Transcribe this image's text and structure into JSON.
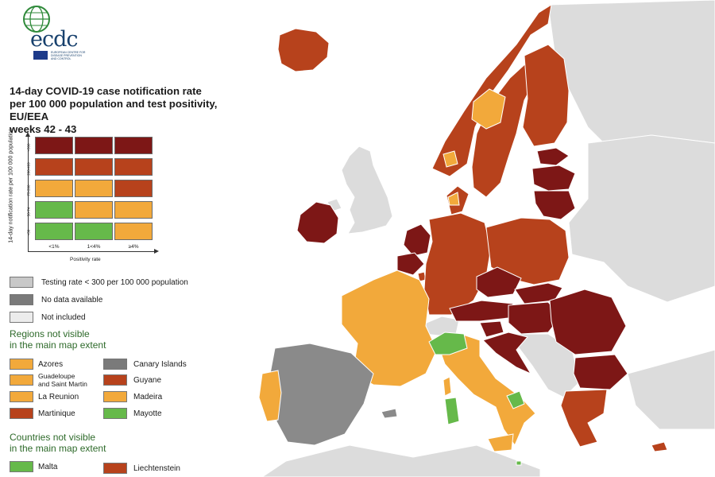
{
  "logo": {
    "wordmark": "ecdc",
    "subtext": [
      "EUROPEAN CENTRE FOR",
      "DISEASE PREVENTION",
      "AND CONTROL"
    ]
  },
  "title_lines": [
    "14-day COVID-19 case notification rate",
    "per 100 000 population and test positivity, EU/EEA",
    "weeks 42 - 43"
  ],
  "matrix": {
    "y_axis_label": "14-day notification rate per 100 000 population",
    "x_axis_label": "Positivity rate",
    "row_labels": [
      ">500",
      "200-499",
      "75-200",
      "50-74",
      "<50"
    ],
    "col_labels": [
      "<1%",
      "1<4%",
      "≥4%"
    ],
    "cells": [
      [
        "#7d1716",
        "#7d1716",
        "#7d1716"
      ],
      [
        "#b7421c",
        "#b7421c",
        "#b7421c"
      ],
      [
        "#f2a93b",
        "#f2a93b",
        "#b7421c"
      ],
      [
        "#66b94a",
        "#f2a93b",
        "#f2a93b"
      ],
      [
        "#66b94a",
        "#66b94a",
        "#f2a93b"
      ]
    ]
  },
  "legend": {
    "general": [
      {
        "label": "Testing rate < 300 per 100 000 population",
        "color": "#c8c8c8"
      },
      {
        "label": "No data available",
        "color": "#7a7a7a"
      },
      {
        "label": "Not included",
        "color": "#ececec"
      }
    ],
    "regions_title": [
      "Regions not visible",
      "in the main map extent"
    ],
    "regions_left": [
      {
        "label": "Azores",
        "color": "#f2a93b"
      },
      {
        "label": "Guadeloupe and Saint Martin",
        "label_lines": [
          "Guadeloupe",
          "and Saint Martin"
        ],
        "color": "#f2a93b"
      },
      {
        "label": "La Reunion",
        "color": "#f2a93b"
      },
      {
        "label": "Martinique",
        "color": "#b7421c"
      }
    ],
    "regions_right": [
      {
        "label": "Canary Islands",
        "color": "#7a7a7a"
      },
      {
        "label": "Guyane",
        "color": "#b7421c"
      },
      {
        "label": "Madeira",
        "color": "#f2a93b"
      },
      {
        "label": "Mayotte",
        "color": "#66b94a"
      }
    ],
    "countries_title": [
      "Countries not visible",
      "in the main map extent"
    ],
    "countries": [
      {
        "label": "Malta",
        "color": "#66b94a"
      },
      {
        "label": "Liechtenstein",
        "color": "#b7421c"
      }
    ]
  },
  "colors": {
    "dark_red": "#7d1716",
    "red": "#b7421c",
    "orange": "#f2a93b",
    "green": "#66b94a",
    "grey_no_data": "#8a8a8a",
    "not_included": "#dcdcdc",
    "sea": "#ffffff",
    "title_green": "#2e6a2a"
  }
}
